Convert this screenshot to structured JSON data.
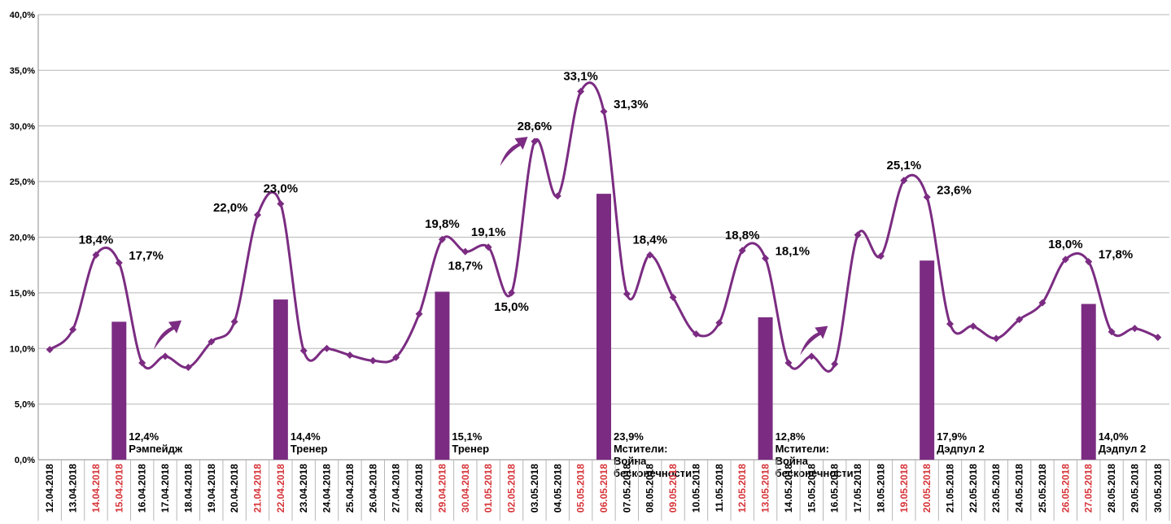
{
  "chart_data": {
    "type": "bar+line",
    "ylim": [
      0,
      40
    ],
    "yticks": [
      "0,0%",
      "5,0%",
      "10,0%",
      "15,0%",
      "20,0%",
      "25,0%",
      "30,0%",
      "35,0%",
      "40,0%"
    ],
    "grid": true,
    "colors": {
      "series": "#7b2c82",
      "weekend_label": "#d6353a",
      "weekday_label": "#000000",
      "grid": "#b7b7b7"
    },
    "categories": [
      "12.04.2018",
      "13.04.2018",
      "14.04.2018",
      "15.04.2018",
      "16.04.2018",
      "17.04.2018",
      "18.04.2018",
      "19.04.2018",
      "20.04.2018",
      "21.04.2018",
      "22.04.2018",
      "23.04.2018",
      "24.04.2018",
      "25.04.2018",
      "26.04.2018",
      "27.04.2018",
      "28.04.2018",
      "29.04.2018",
      "30.04.2018",
      "01.05.2018",
      "02.05.2018",
      "03.05.2018",
      "04.05.2018",
      "05.05.2018",
      "06.05.2018",
      "07.05.2018",
      "08.05.2018",
      "09.05.2018",
      "10.05.2018",
      "11.05.2018",
      "12.05.2018",
      "13.05.2018",
      "14.05.2018",
      "15.05.2018",
      "16.05.2018",
      "17.05.2018",
      "18.05.2018",
      "19.05.2018",
      "20.05.2018",
      "21.05.2018",
      "22.05.2018",
      "23.05.2018",
      "24.05.2018",
      "25.05.2018",
      "26.05.2018",
      "27.05.2018",
      "28.05.2018",
      "29.05.2018",
      "30.05.2018"
    ],
    "highlighted_categories": [
      "14.04.2018",
      "15.04.2018",
      "21.04.2018",
      "22.04.2018",
      "29.04.2018",
      "30.04.2018",
      "01.05.2018",
      "02.05.2018",
      "05.05.2018",
      "06.05.2018",
      "09.05.2018",
      "12.05.2018",
      "13.05.2018",
      "19.05.2018",
      "20.05.2018",
      "26.05.2018",
      "27.05.2018"
    ],
    "line_values": [
      9.9,
      11.7,
      18.4,
      17.7,
      8.7,
      9.3,
      8.3,
      10.6,
      12.4,
      22.0,
      23.0,
      9.8,
      10.0,
      9.4,
      8.9,
      9.2,
      13.1,
      19.8,
      18.7,
      19.1,
      15.0,
      28.6,
      23.7,
      33.1,
      31.3,
      14.9,
      18.4,
      14.6,
      11.3,
      12.3,
      18.8,
      18.1,
      8.7,
      9.3,
      8.6,
      20.2,
      18.3,
      25.1,
      23.6,
      12.2,
      12.0,
      10.9,
      12.6,
      14.1,
      18.0,
      17.8,
      11.5,
      11.8,
      11.0
    ],
    "line_labels": [
      {
        "category": "14.04.2018",
        "text": "18,4%"
      },
      {
        "category": "15.04.2018",
        "text": "17,7%"
      },
      {
        "category": "21.04.2018",
        "text": "22,0%"
      },
      {
        "category": "22.04.2018",
        "text": "23,0%"
      },
      {
        "category": "29.04.2018",
        "text": "19,8%"
      },
      {
        "category": "30.04.2018",
        "text": "18,7%"
      },
      {
        "category": "01.05.2018",
        "text": "19,1%"
      },
      {
        "category": "02.05.2018",
        "text": "15,0%"
      },
      {
        "category": "03.05.2018",
        "text": "28,6%"
      },
      {
        "category": "05.05.2018",
        "text": "33,1%"
      },
      {
        "category": "06.05.2018",
        "text": "31,3%"
      },
      {
        "category": "08.05.2018",
        "text": "18,4%"
      },
      {
        "category": "12.05.2018",
        "text": "18,8%"
      },
      {
        "category": "13.05.2018",
        "text": "18,1%"
      },
      {
        "category": "19.05.2018",
        "text": "25,1%"
      },
      {
        "category": "20.05.2018",
        "text": "23,6%"
      },
      {
        "category": "26.05.2018",
        "text": "18,0%"
      },
      {
        "category": "27.05.2018",
        "text": "17,8%"
      }
    ],
    "bars": [
      {
        "category": "15.04.2018",
        "value": 12.4,
        "label": [
          "12,4%",
          "Рэмпейдж"
        ]
      },
      {
        "category": "22.04.2018",
        "value": 14.4,
        "label": [
          "14,4%",
          "Тренер"
        ]
      },
      {
        "category": "29.04.2018",
        "value": 15.1,
        "label": [
          "15,1%",
          "Тренер"
        ]
      },
      {
        "category": "06.05.2018",
        "value": 23.9,
        "label": [
          "23,9%",
          "Мстители:",
          "Война",
          "бесконечности"
        ]
      },
      {
        "category": "13.05.2018",
        "value": 12.8,
        "label": [
          "12,8%",
          "Мстители:",
          "Война",
          "бесконечности"
        ]
      },
      {
        "category": "20.05.2018",
        "value": 17.9,
        "label": [
          "17,9%",
          "Дэдпул 2"
        ]
      },
      {
        "category": "27.05.2018",
        "value": 14.0,
        "label": [
          "14,0%",
          "Дэдпул 2"
        ]
      }
    ],
    "arrows": [
      {
        "category": "17.04.2018",
        "level": 11.5
      },
      {
        "category": "02.05.2018",
        "level": 28.0
      },
      {
        "category": "15.05.2018",
        "level": 11.0
      }
    ]
  }
}
